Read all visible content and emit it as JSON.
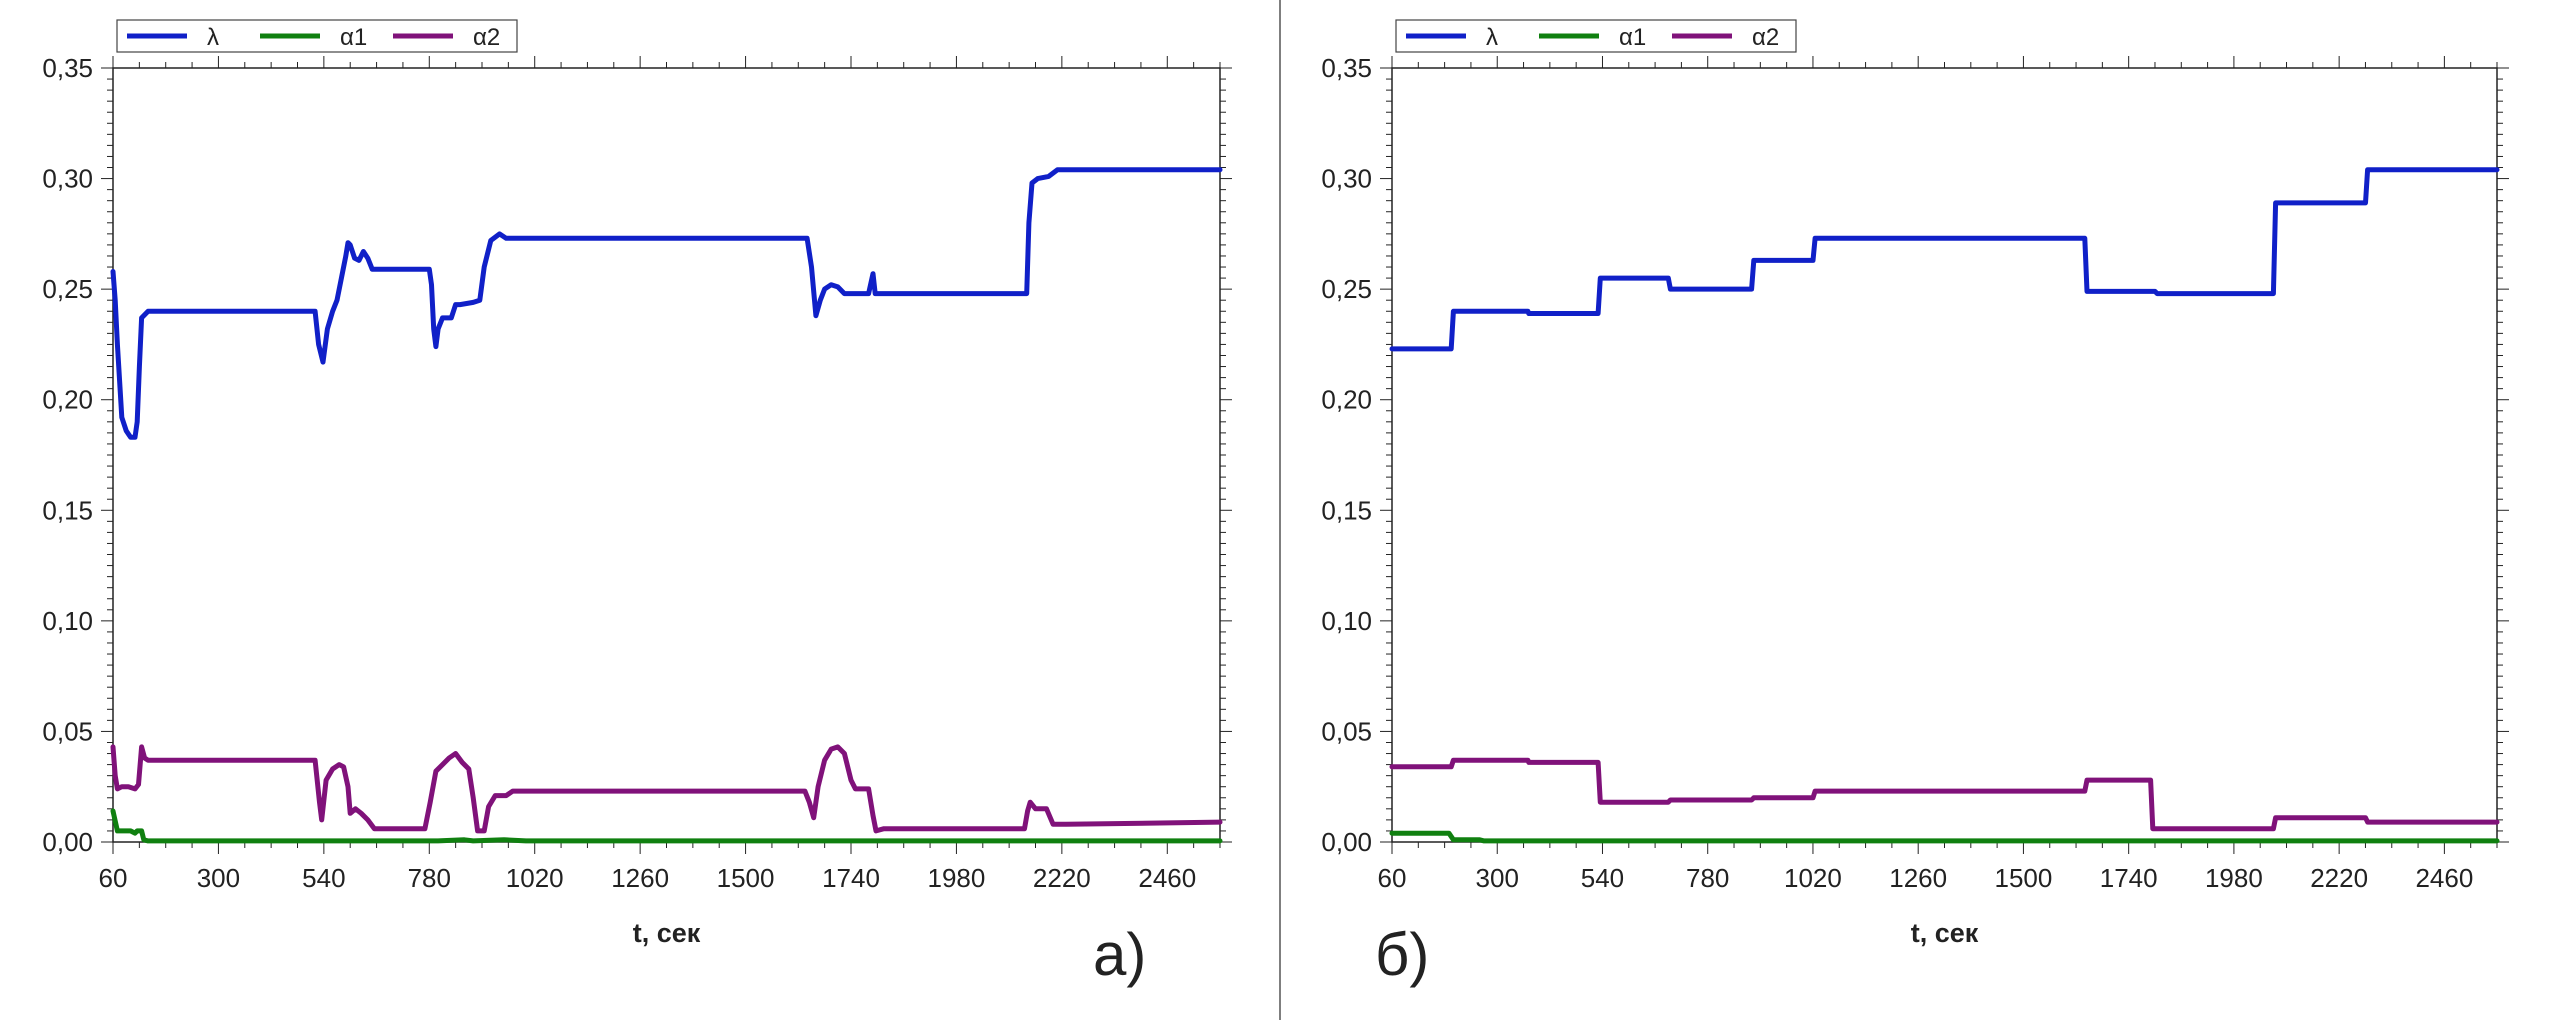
{
  "colors": {
    "lambda": "#1020c8",
    "alpha1": "#108010",
    "alpha2": "#80127a",
    "axis": "#222222",
    "divider": "#555555"
  },
  "chart_data": [
    {
      "type": "line",
      "panel_label": "а)",
      "xlabel": "t, сек",
      "ylabel": "",
      "xlim": [
        60,
        2580
      ],
      "ylim": [
        0,
        0.35
      ],
      "x_ticks": [
        60,
        300,
        540,
        780,
        1020,
        1260,
        1500,
        1740,
        1980,
        2220,
        2460
      ],
      "x_tick_labels": [
        "60",
        "300",
        "540",
        "780",
        "1020",
        "1260",
        "1500",
        "1740",
        "1980",
        "2220",
        "2460"
      ],
      "y_ticks": [
        0,
        0.05,
        0.1,
        0.15,
        0.2,
        0.25,
        0.3,
        0.35
      ],
      "y_tick_labels": [
        "0,00",
        "0,05",
        "0,10",
        "0,15",
        "0,20",
        "0,25",
        "0,30",
        "0,35"
      ],
      "grid": false,
      "legend_position": "top-left",
      "series": [
        {
          "name": "λ",
          "color": "#1020c8",
          "points": [
            [
              60,
              0.258
            ],
            [
              65,
              0.245
            ],
            [
              70,
              0.225
            ],
            [
              80,
              0.192
            ],
            [
              90,
              0.186
            ],
            [
              100,
              0.183
            ],
            [
              110,
              0.183
            ],
            [
              115,
              0.19
            ],
            [
              120,
              0.215
            ],
            [
              125,
              0.237
            ],
            [
              140,
              0.24
            ],
            [
              200,
              0.24
            ],
            [
              400,
              0.24
            ],
            [
              520,
              0.24
            ],
            [
              528,
              0.225
            ],
            [
              538,
              0.217
            ],
            [
              548,
              0.232
            ],
            [
              560,
              0.24
            ],
            [
              570,
              0.245
            ],
            [
              580,
              0.255
            ],
            [
              590,
              0.265
            ],
            [
              595,
              0.271
            ],
            [
              600,
              0.27
            ],
            [
              610,
              0.264
            ],
            [
              620,
              0.263
            ],
            [
              630,
              0.267
            ],
            [
              640,
              0.264
            ],
            [
              650,
              0.259
            ],
            [
              700,
              0.259
            ],
            [
              780,
              0.259
            ],
            [
              785,
              0.252
            ],
            [
              790,
              0.232
            ],
            [
              795,
              0.224
            ],
            [
              800,
              0.232
            ],
            [
              810,
              0.237
            ],
            [
              830,
              0.237
            ],
            [
              840,
              0.243
            ],
            [
              850,
              0.243
            ],
            [
              880,
              0.244
            ],
            [
              895,
              0.245
            ],
            [
              905,
              0.26
            ],
            [
              920,
              0.272
            ],
            [
              940,
              0.275
            ],
            [
              955,
              0.273
            ],
            [
              1000,
              0.273
            ],
            [
              1200,
              0.273
            ],
            [
              1640,
              0.273
            ],
            [
              1650,
              0.26
            ],
            [
              1660,
              0.238
            ],
            [
              1670,
              0.245
            ],
            [
              1680,
              0.25
            ],
            [
              1695,
              0.252
            ],
            [
              1710,
              0.251
            ],
            [
              1725,
              0.248
            ],
            [
              1780,
              0.248
            ],
            [
              1790,
              0.257
            ],
            [
              1795,
              0.248
            ],
            [
              1850,
              0.248
            ],
            [
              2000,
              0.248
            ],
            [
              2140,
              0.248
            ],
            [
              2145,
              0.28
            ],
            [
              2152,
              0.298
            ],
            [
              2165,
              0.3
            ],
            [
              2190,
              0.301
            ],
            [
              2210,
              0.304
            ],
            [
              2400,
              0.304
            ],
            [
              2580,
              0.304
            ]
          ]
        },
        {
          "name": "α1",
          "color": "#108010",
          "points": [
            [
              60,
              0.014
            ],
            [
              70,
              0.005
            ],
            [
              100,
              0.005
            ],
            [
              110,
              0.004
            ],
            [
              115,
              0.005
            ],
            [
              125,
              0.005
            ],
            [
              130,
              0.001
            ],
            [
              140,
              0.0005
            ],
            [
              300,
              0.0005
            ],
            [
              800,
              0.0005
            ],
            [
              860,
              0.001
            ],
            [
              880,
              0.0005
            ],
            [
              950,
              0.001
            ],
            [
              1000,
              0.0005
            ],
            [
              1500,
              0.0005
            ],
            [
              2580,
              0.0005
            ]
          ]
        },
        {
          "name": "α2",
          "color": "#80127a",
          "points": [
            [
              60,
              0.043
            ],
            [
              65,
              0.03
            ],
            [
              70,
              0.024
            ],
            [
              80,
              0.025
            ],
            [
              95,
              0.025
            ],
            [
              110,
              0.024
            ],
            [
              118,
              0.026
            ],
            [
              125,
              0.043
            ],
            [
              132,
              0.038
            ],
            [
              140,
              0.037
            ],
            [
              300,
              0.037
            ],
            [
              520,
              0.037
            ],
            [
              530,
              0.018
            ],
            [
              535,
              0.01
            ],
            [
              545,
              0.028
            ],
            [
              560,
              0.033
            ],
            [
              575,
              0.035
            ],
            [
              585,
              0.034
            ],
            [
              595,
              0.025
            ],
            [
              600,
              0.013
            ],
            [
              612,
              0.015
            ],
            [
              625,
              0.013
            ],
            [
              640,
              0.01
            ],
            [
              655,
              0.006
            ],
            [
              700,
              0.006
            ],
            [
              770,
              0.006
            ],
            [
              782,
              0.018
            ],
            [
              795,
              0.032
            ],
            [
              810,
              0.035
            ],
            [
              825,
              0.038
            ],
            [
              840,
              0.04
            ],
            [
              855,
              0.036
            ],
            [
              870,
              0.033
            ],
            [
              880,
              0.02
            ],
            [
              890,
              0.005
            ],
            [
              905,
              0.005
            ],
            [
              915,
              0.016
            ],
            [
              930,
              0.021
            ],
            [
              955,
              0.021
            ],
            [
              970,
              0.023
            ],
            [
              1000,
              0.023
            ],
            [
              1300,
              0.023
            ],
            [
              1635,
              0.023
            ],
            [
              1645,
              0.018
            ],
            [
              1655,
              0.011
            ],
            [
              1665,
              0.025
            ],
            [
              1680,
              0.037
            ],
            [
              1695,
              0.042
            ],
            [
              1710,
              0.043
            ],
            [
              1725,
              0.04
            ],
            [
              1740,
              0.028
            ],
            [
              1750,
              0.024
            ],
            [
              1770,
              0.024
            ],
            [
              1780,
              0.024
            ],
            [
              1790,
              0.012
            ],
            [
              1797,
              0.005
            ],
            [
              1815,
              0.006
            ],
            [
              2000,
              0.006
            ],
            [
              2135,
              0.006
            ],
            [
              2142,
              0.014
            ],
            [
              2148,
              0.018
            ],
            [
              2160,
              0.015
            ],
            [
              2185,
              0.015
            ],
            [
              2200,
              0.008
            ],
            [
              2230,
              0.008
            ],
            [
              2580,
              0.009
            ]
          ]
        }
      ]
    },
    {
      "type": "line",
      "panel_label": "б)",
      "xlabel": "t, сек",
      "ylabel": "",
      "xlim": [
        60,
        2580
      ],
      "ylim": [
        0,
        0.35
      ],
      "x_ticks": [
        60,
        300,
        540,
        780,
        1020,
        1260,
        1500,
        1740,
        1980,
        2220,
        2460
      ],
      "x_tick_labels": [
        "60",
        "300",
        "540",
        "780",
        "1020",
        "1260",
        "1500",
        "1740",
        "1980",
        "2220",
        "2460"
      ],
      "y_ticks": [
        0,
        0.05,
        0.1,
        0.15,
        0.2,
        0.25,
        0.3,
        0.35
      ],
      "y_tick_labels": [
        "0,00",
        "0,05",
        "0,10",
        "0,15",
        "0,20",
        "0,25",
        "0,30",
        "0,35"
      ],
      "grid": false,
      "legend_position": "top-left",
      "series": [
        {
          "name": "λ",
          "color": "#1020c8",
          "points": [
            [
              60,
              0.223
            ],
            [
              195,
              0.223
            ],
            [
              200,
              0.24
            ],
            [
              370,
              0.24
            ],
            [
              372,
              0.239
            ],
            [
              530,
              0.239
            ],
            [
              535,
              0.255
            ],
            [
              690,
              0.255
            ],
            [
              695,
              0.25
            ],
            [
              880,
              0.25
            ],
            [
              885,
              0.263
            ],
            [
              1020,
              0.263
            ],
            [
              1025,
              0.273
            ],
            [
              1640,
              0.273
            ],
            [
              1645,
              0.249
            ],
            [
              1800,
              0.249
            ],
            [
              1805,
              0.248
            ],
            [
              2070,
              0.248
            ],
            [
              2075,
              0.289
            ],
            [
              2280,
              0.289
            ],
            [
              2285,
              0.304
            ],
            [
              2580,
              0.304
            ]
          ]
        },
        {
          "name": "α1",
          "color": "#108010",
          "points": [
            [
              60,
              0.004
            ],
            [
              190,
              0.004
            ],
            [
              200,
              0.001
            ],
            [
              260,
              0.001
            ],
            [
              270,
              0.0005
            ],
            [
              2580,
              0.0005
            ]
          ]
        },
        {
          "name": "α2",
          "color": "#80127a",
          "points": [
            [
              60,
              0.034
            ],
            [
              195,
              0.034
            ],
            [
              200,
              0.037
            ],
            [
              370,
              0.037
            ],
            [
              372,
              0.036
            ],
            [
              530,
              0.036
            ],
            [
              535,
              0.018
            ],
            [
              690,
              0.018
            ],
            [
              695,
              0.019
            ],
            [
              880,
              0.019
            ],
            [
              885,
              0.02
            ],
            [
              1020,
              0.02
            ],
            [
              1025,
              0.023
            ],
            [
              1640,
              0.023
            ],
            [
              1645,
              0.028
            ],
            [
              1790,
              0.028
            ],
            [
              1795,
              0.006
            ],
            [
              2070,
              0.006
            ],
            [
              2075,
              0.011
            ],
            [
              2280,
              0.011
            ],
            [
              2285,
              0.009
            ],
            [
              2580,
              0.009
            ]
          ]
        }
      ]
    }
  ]
}
